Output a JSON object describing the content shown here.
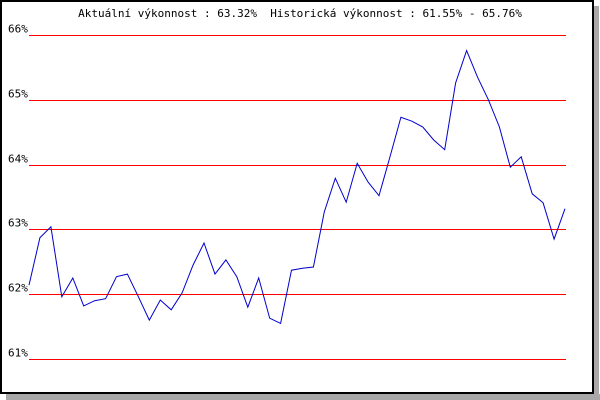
{
  "chart_data": {
    "type": "line",
    "title": "Aktuální výkonnost : 63.32%  Historická výkonnost : 61.55% - 65.76%",
    "xlabel": "",
    "ylabel": "",
    "ylim": [
      61,
      66
    ],
    "yticks": [
      "61%",
      "62%",
      "63%",
      "64%",
      "65%",
      "66%"
    ],
    "grid": true,
    "colors": {
      "grid": "#ff0000",
      "line": "#0000cc"
    },
    "series": [
      {
        "values": [
          62.14,
          62.87,
          63.04,
          61.96,
          62.25,
          61.82,
          61.9,
          61.93,
          62.27,
          62.31,
          61.96,
          61.6,
          61.91,
          61.76,
          62.02,
          62.45,
          62.79,
          62.31,
          62.53,
          62.27,
          61.8,
          62.25,
          61.63,
          61.55,
          62.37,
          62.4,
          62.42,
          63.27,
          63.79,
          63.42,
          64.02,
          63.73,
          63.52,
          64.12,
          64.73,
          64.67,
          64.58,
          64.38,
          64.23,
          65.26,
          65.76,
          65.35,
          65.0,
          64.58,
          63.96,
          64.12,
          63.55,
          63.41,
          62.85,
          63.32
        ]
      }
    ]
  }
}
